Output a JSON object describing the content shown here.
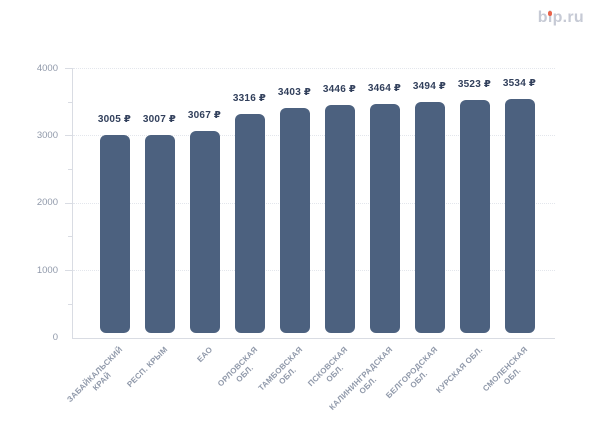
{
  "header": {
    "logo_text": "bip.ru",
    "logo_color": "#c6cad5",
    "logo_dot_color": "#e8634a"
  },
  "chart_data": {
    "type": "bar",
    "title": "",
    "xlabel": "",
    "ylabel": "",
    "categories": [
      "ЗАБАЙКАЛЬСКИЙ КРАЙ",
      "РЕСП. КРЫМ",
      "ЕАО",
      "ОРЛОВСКАЯ ОБЛ.",
      "ТАМБОВСКАЯ ОБЛ.",
      "ПСКОВСКАЯ ОБЛ.",
      "КАЛИНИНГРАДСКАЯ ОБЛ.",
      "БЕЛГОРОДСКАЯ ОБЛ.",
      "КУРСКАЯ ОБЛ.",
      "СМОЛЕНСКАЯ ОБЛ."
    ],
    "category_label_lines": [
      [
        "ЗАБАЙКАЛЬСКИЙ",
        "КРАЙ"
      ],
      [
        "РЕСП. КРЫМ"
      ],
      [
        "ЕАО"
      ],
      [
        "ОРЛОВСКАЯ",
        "ОБЛ."
      ],
      [
        "ТАМБОВСКАЯ",
        "ОБЛ."
      ],
      [
        "ПСКОВСКАЯ",
        "ОБЛ."
      ],
      [
        "КАЛИНИНГРАДСКАЯ",
        "ОБЛ."
      ],
      [
        "БЕЛГОРОДСКАЯ",
        "ОБЛ."
      ],
      [
        "КУРСКАЯ ОБЛ."
      ],
      [
        "СМОЛЕНСКАЯ",
        "ОБЛ."
      ]
    ],
    "values": [
      3005,
      3007,
      3067,
      3316,
      3403,
      3446,
      3464,
      3494,
      3523,
      3534
    ],
    "value_suffix": " ₽",
    "ylim": [
      0,
      4000
    ],
    "yticks": [
      0,
      1000,
      2000,
      3000,
      4000
    ],
    "minor_yticks": [
      500,
      1500,
      2500,
      3500
    ],
    "grid_horizontal": "dotted",
    "legend": "none",
    "bar_color": "#4c617f",
    "value_label_color": "#32405c",
    "axis_label_color": "#9099aa"
  }
}
